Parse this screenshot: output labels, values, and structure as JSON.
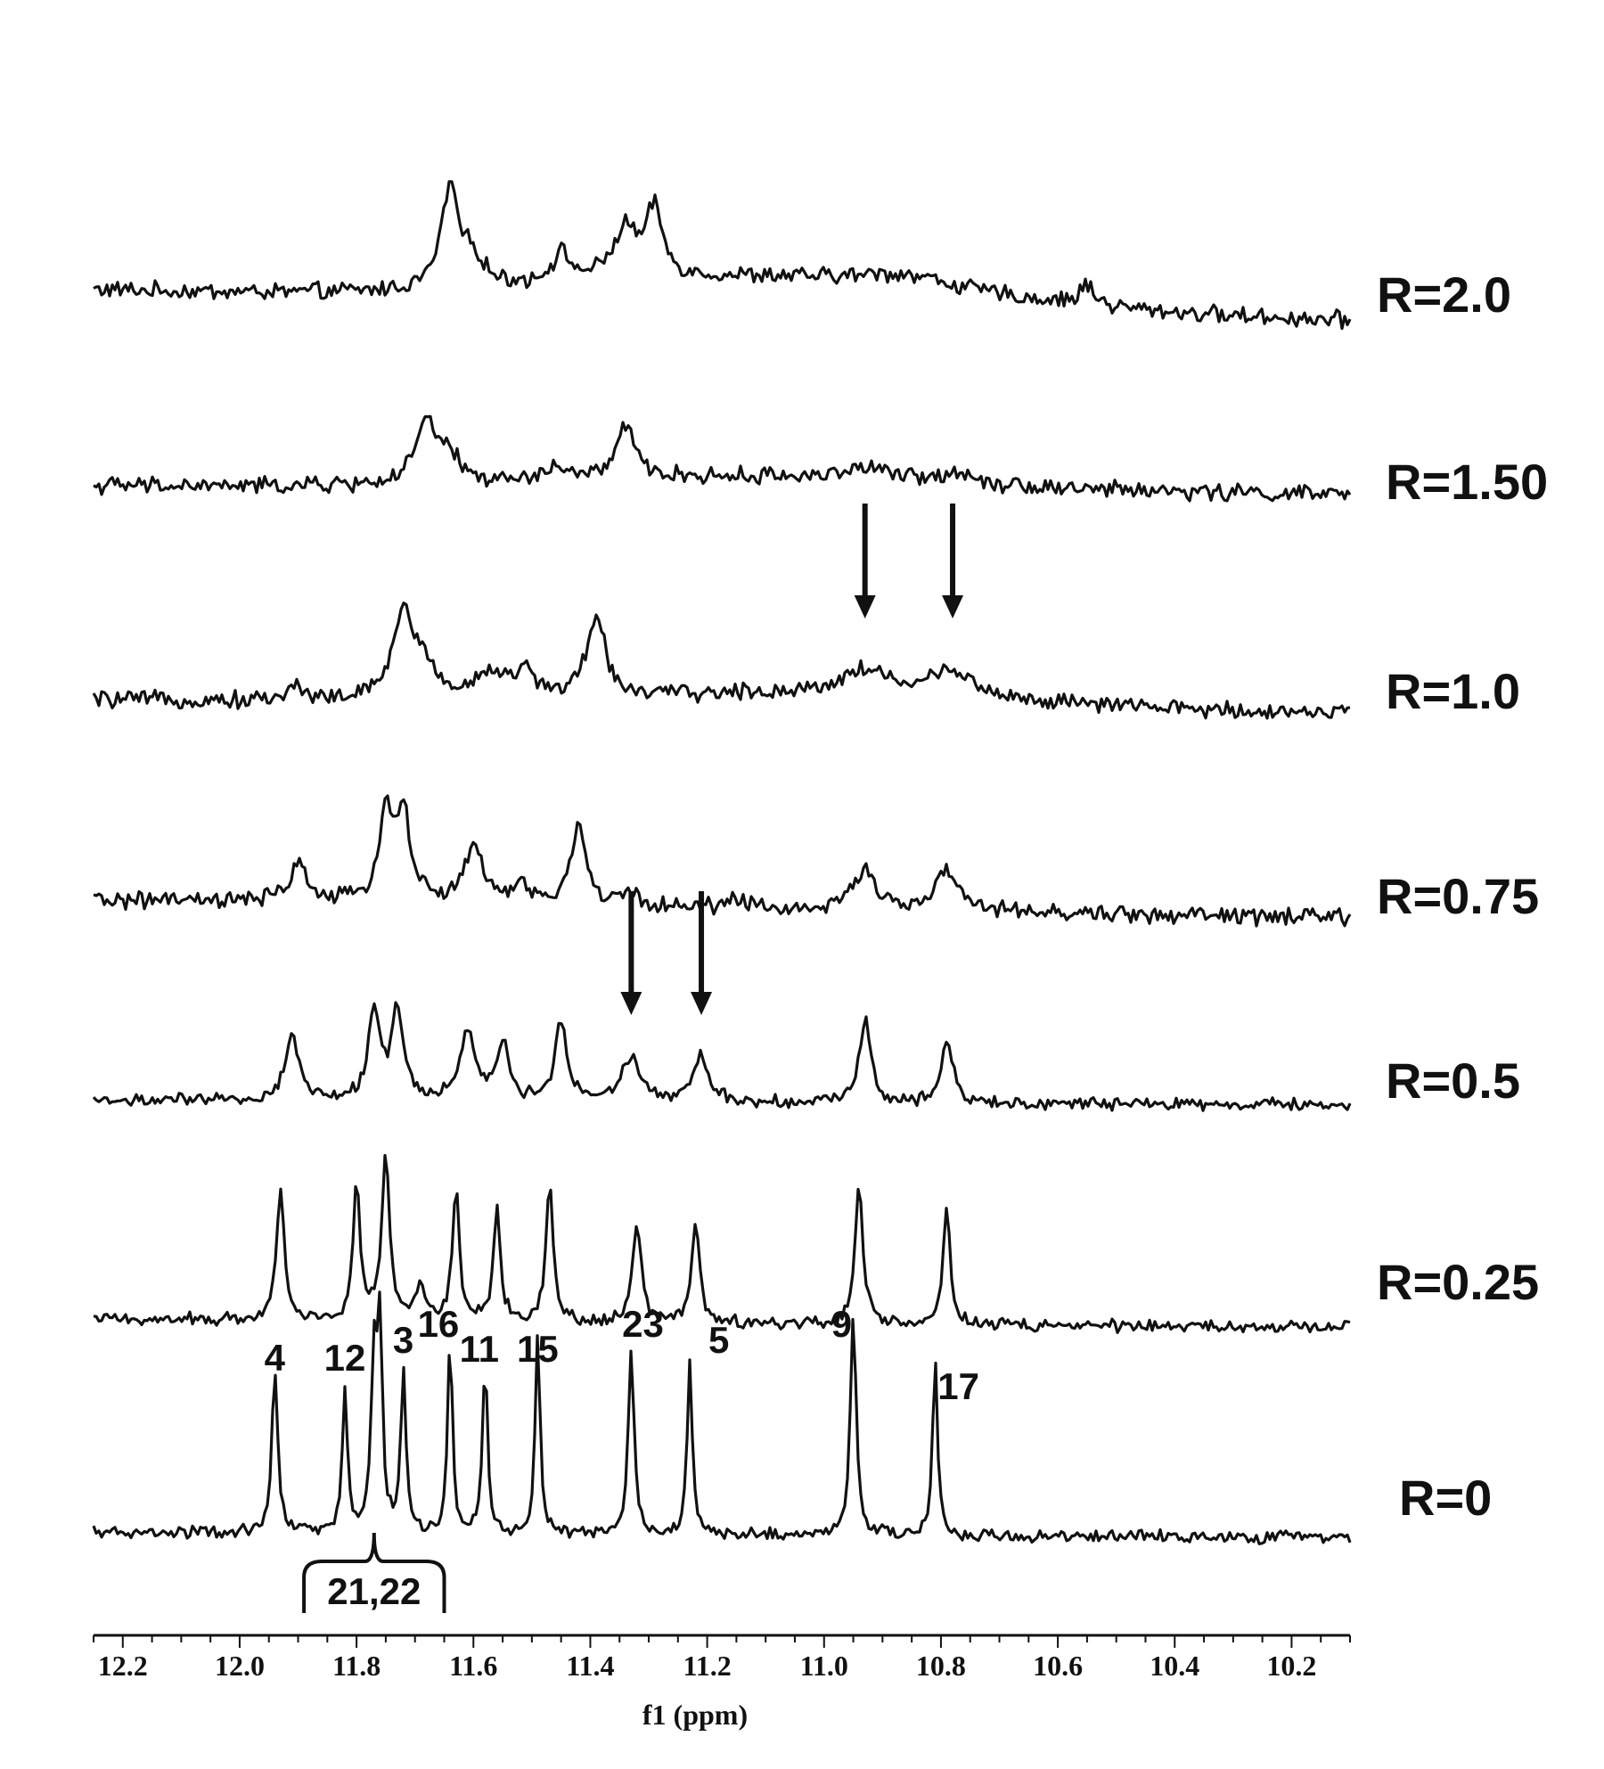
{
  "chart_data": {
    "type": "line",
    "title": "",
    "xlabel": "f1 (ppm)",
    "ylabel": "",
    "xlim": [
      12.25,
      10.1
    ],
    "x_reversed": true,
    "xticks": [
      12.2,
      12.0,
      11.8,
      11.6,
      11.4,
      11.2,
      11.0,
      10.8,
      10.6,
      10.4,
      10.2
    ],
    "xtick_labels": [
      "12.2",
      "12.0",
      "11.8",
      "11.6",
      "11.4",
      "11.2",
      "11.0",
      "10.8",
      "10.6",
      "10.4",
      "10.2"
    ],
    "grid": false,
    "stack_order": "top-to-bottom",
    "series": [
      {
        "name": "R=2.0",
        "peaks": [
          {
            "ppm": 11.64,
            "height": 0.9,
            "width": 0.018
          },
          {
            "ppm": 11.6,
            "height": 0.25,
            "width": 0.02
          },
          {
            "ppm": 11.45,
            "height": 0.25,
            "width": 0.02
          },
          {
            "ppm": 11.34,
            "height": 0.45,
            "width": 0.025
          },
          {
            "ppm": 11.29,
            "height": 0.6,
            "width": 0.016
          },
          {
            "ppm": 10.86,
            "height": 0.12,
            "width": 0.1
          },
          {
            "ppm": 10.55,
            "height": 0.18,
            "width": 0.015
          }
        ],
        "broad_hump": {
          "center": 11.1,
          "height": 0.25,
          "width": 0.5
        }
      },
      {
        "name": "R=1.50",
        "peaks": [
          {
            "ppm": 11.68,
            "height": 0.55,
            "width": 0.022
          },
          {
            "ppm": 11.64,
            "height": 0.2,
            "width": 0.02
          },
          {
            "ppm": 11.46,
            "height": 0.12,
            "width": 0.02
          },
          {
            "ppm": 11.34,
            "height": 0.45,
            "width": 0.02
          },
          {
            "ppm": 10.93,
            "height": 0.1,
            "width": 0.05
          },
          {
            "ppm": 10.77,
            "height": 0.1,
            "width": 0.03
          }
        ],
        "broad_hump": {
          "center": 11.1,
          "height": 0.12,
          "width": 0.5
        }
      },
      {
        "name": "R=1.0",
        "peaks": [
          {
            "ppm": 11.9,
            "height": 0.12,
            "width": 0.02
          },
          {
            "ppm": 11.72,
            "height": 0.8,
            "width": 0.022
          },
          {
            "ppm": 11.68,
            "height": 0.25,
            "width": 0.02
          },
          {
            "ppm": 11.57,
            "height": 0.25,
            "width": 0.03
          },
          {
            "ppm": 11.51,
            "height": 0.22,
            "width": 0.02
          },
          {
            "ppm": 11.39,
            "height": 0.7,
            "width": 0.02
          },
          {
            "ppm": 10.93,
            "height": 0.22,
            "width": 0.05
          },
          {
            "ppm": 10.78,
            "height": 0.25,
            "width": 0.04
          }
        ],
        "broad_hump": {
          "center": 11.0,
          "height": 0.12,
          "width": 0.45
        }
      },
      {
        "name": "R=0.75",
        "peaks": [
          {
            "ppm": 11.9,
            "height": 0.35,
            "width": 0.018
          },
          {
            "ppm": 11.75,
            "height": 0.8,
            "width": 0.014
          },
          {
            "ppm": 11.72,
            "height": 0.8,
            "width": 0.014
          },
          {
            "ppm": 11.6,
            "height": 0.5,
            "width": 0.02
          },
          {
            "ppm": 11.52,
            "height": 0.15,
            "width": 0.02
          },
          {
            "ppm": 11.42,
            "height": 0.7,
            "width": 0.016
          },
          {
            "ppm": 11.33,
            "height": 0.1,
            "width": 0.02
          },
          {
            "ppm": 11.15,
            "height": 0.1,
            "width": 0.02
          },
          {
            "ppm": 10.93,
            "height": 0.4,
            "width": 0.02
          },
          {
            "ppm": 10.79,
            "height": 0.35,
            "width": 0.025
          }
        ]
      },
      {
        "name": "R=0.5",
        "peaks": [
          {
            "ppm": 11.91,
            "height": 0.8,
            "width": 0.014
          },
          {
            "ppm": 11.77,
            "height": 1.1,
            "width": 0.012
          },
          {
            "ppm": 11.73,
            "height": 1.1,
            "width": 0.012
          },
          {
            "ppm": 11.61,
            "height": 0.9,
            "width": 0.014
          },
          {
            "ppm": 11.55,
            "height": 0.7,
            "width": 0.012
          },
          {
            "ppm": 11.45,
            "height": 1.0,
            "width": 0.012
          },
          {
            "ppm": 11.33,
            "height": 0.55,
            "width": 0.02
          },
          {
            "ppm": 11.21,
            "height": 0.55,
            "width": 0.016
          },
          {
            "ppm": 10.93,
            "height": 1.0,
            "width": 0.012
          },
          {
            "ppm": 10.79,
            "height": 0.8,
            "width": 0.012
          }
        ]
      },
      {
        "name": "R=0.25",
        "peaks": [
          {
            "ppm": 11.93,
            "height": 1.6,
            "width": 0.008
          },
          {
            "ppm": 11.8,
            "height": 1.7,
            "width": 0.007
          },
          {
            "ppm": 11.75,
            "height": 2.0,
            "width": 0.008
          },
          {
            "ppm": 11.69,
            "height": 0.5,
            "width": 0.008
          },
          {
            "ppm": 11.63,
            "height": 1.6,
            "width": 0.007
          },
          {
            "ppm": 11.56,
            "height": 1.4,
            "width": 0.007
          },
          {
            "ppm": 11.47,
            "height": 1.7,
            "width": 0.007
          },
          {
            "ppm": 11.32,
            "height": 1.2,
            "width": 0.009
          },
          {
            "ppm": 11.22,
            "height": 1.2,
            "width": 0.008
          },
          {
            "ppm": 10.94,
            "height": 1.7,
            "width": 0.008
          },
          {
            "ppm": 10.79,
            "height": 1.5,
            "width": 0.007
          }
        ]
      },
      {
        "name": "R=0",
        "peaks": [
          {
            "ppm": 11.94,
            "height": 2.0,
            "width": 0.006
          },
          {
            "ppm": 11.82,
            "height": 1.8,
            "width": 0.005
          },
          {
            "ppm": 11.77,
            "height": 2.1,
            "width": 0.006
          },
          {
            "ppm": 11.76,
            "height": 2.4,
            "width": 0.005
          },
          {
            "ppm": 11.72,
            "height": 2.0,
            "width": 0.005
          },
          {
            "ppm": 11.64,
            "height": 2.3,
            "width": 0.005
          },
          {
            "ppm": 11.58,
            "height": 2.1,
            "width": 0.005
          },
          {
            "ppm": 11.49,
            "height": 2.4,
            "width": 0.005
          },
          {
            "ppm": 11.33,
            "height": 2.2,
            "width": 0.006
          },
          {
            "ppm": 11.23,
            "height": 2.2,
            "width": 0.005
          },
          {
            "ppm": 10.95,
            "height": 2.7,
            "width": 0.006
          },
          {
            "ppm": 10.81,
            "height": 2.2,
            "width": 0.005
          }
        ]
      }
    ],
    "annotations": {
      "peak_labels": [
        {
          "text": "4",
          "ppm": 11.94
        },
        {
          "text": "12",
          "ppm": 11.82
        },
        {
          "text": "3",
          "ppm": 11.72
        },
        {
          "text": "16",
          "ppm": 11.66
        },
        {
          "text": "11",
          "ppm": 11.59
        },
        {
          "text": "15",
          "ppm": 11.49
        },
        {
          "text": "23",
          "ppm": 11.31
        },
        {
          "text": "5",
          "ppm": 11.18
        },
        {
          "text": "9",
          "ppm": 10.97
        },
        {
          "text": "17",
          "ppm": 10.77
        }
      ],
      "bracket_label": {
        "text": "21,22",
        "ppm_center": 11.77,
        "ppm_from": 11.89,
        "ppm_to": 11.65
      },
      "arrows": [
        {
          "series": "R=1.0",
          "ppm": 10.93
        },
        {
          "series": "R=1.0",
          "ppm": 10.78
        },
        {
          "series": "R=0.5",
          "ppm": 11.33
        },
        {
          "series": "R=0.5",
          "ppm": 11.21
        }
      ]
    }
  }
}
